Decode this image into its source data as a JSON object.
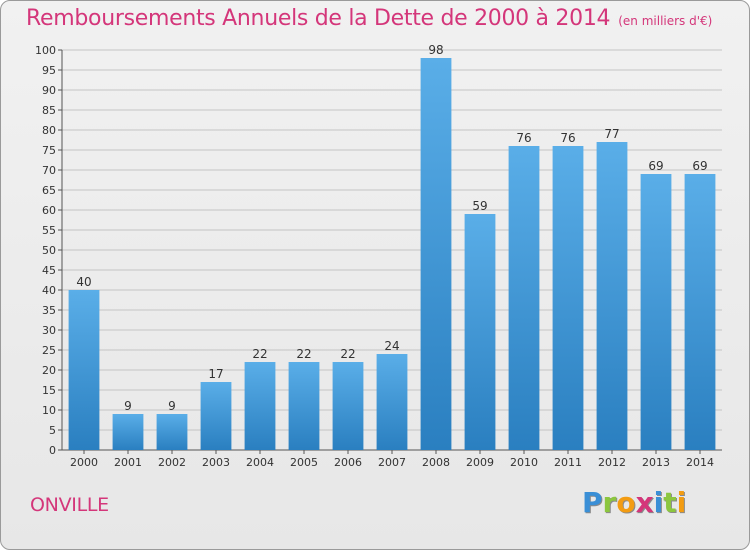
{
  "header": {
    "title": "Remboursements Annuels de la Dette de 2000 à 2014",
    "subtitle": "(en milliers d'€)"
  },
  "footer": {
    "commune": "ONVILLE",
    "logo_letters": [
      {
        "char": "P",
        "color": "#3a8fd6"
      },
      {
        "char": "r",
        "color": "#8cc63f"
      },
      {
        "char": "o",
        "color": "#f39c12"
      },
      {
        "char": "x",
        "color": "#d4367a"
      },
      {
        "char": "i",
        "color": "#3a8fd6"
      },
      {
        "char": "t",
        "color": "#8cc63f"
      },
      {
        "char": "i",
        "color": "#f39c12"
      }
    ]
  },
  "colors": {
    "bar_top": "#5aaee8",
    "bar_bottom": "#2a7fc0",
    "title": "#d4367a",
    "grid": "#c4c4c4"
  },
  "chart_data": {
    "type": "bar",
    "title": "Remboursements Annuels de la Dette de 2000 à 2014",
    "subtitle": "(en milliers d'€)",
    "categories": [
      "2000",
      "2001",
      "2002",
      "2003",
      "2004",
      "2005",
      "2006",
      "2007",
      "2008",
      "2009",
      "2010",
      "2011",
      "2012",
      "2013",
      "2014"
    ],
    "values": [
      40,
      9,
      9,
      17,
      22,
      22,
      22,
      24,
      98,
      59,
      76,
      76,
      77,
      69,
      69
    ],
    "ylim": [
      0,
      100
    ],
    "ytick_step": 5,
    "grid": true,
    "data_labels": true
  }
}
